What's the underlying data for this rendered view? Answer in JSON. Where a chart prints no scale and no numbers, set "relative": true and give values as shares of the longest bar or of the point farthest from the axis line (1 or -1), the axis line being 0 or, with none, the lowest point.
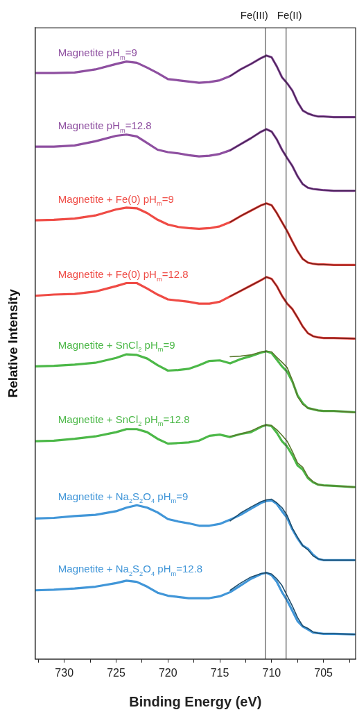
{
  "chart_data": {
    "type": "line",
    "xlabel": "Binding Energy (eV)",
    "ylabel": "Relative Intensity",
    "relative": true,
    "marker": "none",
    "xlim": [
      732.8,
      701.9
    ],
    "xticks": [
      {
        "value": 732.5,
        "label": null
      },
      730,
      {
        "value": 727.5,
        "label": null
      },
      725,
      {
        "value": 722.5,
        "label": null
      },
      720,
      {
        "value": 717.5,
        "label": null
      },
      715,
      {
        "value": 712.5,
        "label": null
      },
      710,
      {
        "value": 707.5,
        "label": null
      },
      705,
      {
        "value": 702.5,
        "label": null
      }
    ],
    "ref_lines": [
      {
        "axis": "x",
        "value": 710.6,
        "label": "Fe(III)",
        "color": "#333333"
      },
      {
        "axis": "x",
        "value": 708.6,
        "label": "Fe(II)",
        "color": "#333333"
      }
    ],
    "x": [
      732.8,
      731,
      729,
      727,
      725,
      724,
      723,
      722,
      721,
      720,
      719,
      718,
      717,
      716,
      715,
      714,
      713,
      712,
      711,
      710.5,
      710,
      709.5,
      709,
      708.5,
      708,
      707.5,
      707,
      706.5,
      706,
      705.5,
      705,
      704,
      702
    ],
    "series": [
      {
        "name": "Magnetite pH$_{m}$=9",
        "color": "#8e4fa0",
        "values": [
          0.971,
          0.971,
          0.972,
          0.977,
          0.986,
          0.99,
          0.988,
          0.98,
          0.971,
          0.961,
          0.959,
          0.957,
          0.955,
          0.956,
          0.959,
          0.966,
          0.977,
          0.986,
          0.996,
          1.0,
          0.997,
          0.982,
          0.964,
          0.954,
          0.942,
          0.923,
          0.909,
          0.904,
          0.901,
          0.899,
          0.899,
          0.898,
          0.898
        ]
      },
      {
        "name": "Magnetite pH$_{m}$=12.8",
        "color": "#8e4fa0",
        "values": [
          0.849,
          0.849,
          0.851,
          0.858,
          0.867,
          0.869,
          0.866,
          0.855,
          0.844,
          0.84,
          0.838,
          0.835,
          0.833,
          0.834,
          0.837,
          0.843,
          0.853,
          0.863,
          0.874,
          0.878,
          0.874,
          0.861,
          0.844,
          0.83,
          0.817,
          0.8,
          0.787,
          0.781,
          0.779,
          0.778,
          0.777,
          0.776,
          0.776
        ]
      },
      {
        "name": "Magnetite + Fe(0) pH$_{m}$=9",
        "color": "#ef4b45",
        "values": [
          0.727,
          0.728,
          0.73,
          0.735,
          0.745,
          0.748,
          0.747,
          0.739,
          0.728,
          0.72,
          0.716,
          0.714,
          0.713,
          0.714,
          0.717,
          0.724,
          0.734,
          0.743,
          0.752,
          0.755,
          0.752,
          0.739,
          0.724,
          0.709,
          0.692,
          0.676,
          0.663,
          0.657,
          0.655,
          0.654,
          0.654,
          0.653,
          0.653
        ]
      },
      {
        "name": "Magnetite + Fe(0) pH$_{m}$=12.8",
        "color": "#ef4b45",
        "values": [
          0.602,
          0.604,
          0.605,
          0.609,
          0.618,
          0.623,
          0.623,
          0.614,
          0.604,
          0.596,
          0.594,
          0.592,
          0.589,
          0.589,
          0.592,
          0.601,
          0.61,
          0.619,
          0.628,
          0.633,
          0.63,
          0.618,
          0.602,
          0.589,
          0.58,
          0.566,
          0.551,
          0.54,
          0.535,
          0.533,
          0.532,
          0.532,
          0.531
        ]
      },
      {
        "name": "Magnetite + SnCl$_{2}$ pH$_{m}$=9",
        "color": "#4cb848",
        "values": [
          0.485,
          0.486,
          0.488,
          0.491,
          0.499,
          0.505,
          0.504,
          0.498,
          0.487,
          0.478,
          0.479,
          0.481,
          0.487,
          0.494,
          0.495,
          0.49,
          0.497,
          0.502,
          0.508,
          0.51,
          0.507,
          0.496,
          0.485,
          0.476,
          0.46,
          0.437,
          0.424,
          0.416,
          0.414,
          0.412,
          0.411,
          0.411,
          0.409
        ]
      },
      {
        "name": "Magnetite + SnCl$_{2}$ pH$_{m}$=12.8",
        "color": "#4cb848",
        "values": [
          0.361,
          0.362,
          0.365,
          0.369,
          0.376,
          0.381,
          0.381,
          0.376,
          0.365,
          0.357,
          0.358,
          0.359,
          0.362,
          0.37,
          0.372,
          0.368,
          0.373,
          0.376,
          0.385,
          0.388,
          0.386,
          0.375,
          0.361,
          0.352,
          0.338,
          0.321,
          0.314,
          0.3,
          0.293,
          0.289,
          0.288,
          0.287,
          0.285
        ]
      },
      {
        "name": "Magnetite + Na$_{2}$S$_{2}$O$_{4}$ pH$_{m}$=9",
        "color": "#4196d8",
        "values": [
          0.233,
          0.234,
          0.237,
          0.239,
          0.245,
          0.251,
          0.255,
          0.251,
          0.243,
          0.232,
          0.228,
          0.225,
          0.221,
          0.221,
          0.224,
          0.231,
          0.239,
          0.249,
          0.259,
          0.262,
          0.263,
          0.257,
          0.245,
          0.234,
          0.215,
          0.2,
          0.188,
          0.183,
          0.173,
          0.166,
          0.164,
          0.164,
          0.164
        ]
      },
      {
        "name": "Magnetite + Na$_{2}$S$_{2}$O$_{4}$ pH$_{m}$=12.8",
        "color": "#4196d8",
        "values": [
          0.114,
          0.115,
          0.117,
          0.12,
          0.126,
          0.13,
          0.128,
          0.12,
          0.11,
          0.105,
          0.103,
          0.101,
          0.101,
          0.101,
          0.104,
          0.111,
          0.122,
          0.133,
          0.141,
          0.143,
          0.139,
          0.128,
          0.111,
          0.097,
          0.08,
          0.063,
          0.054,
          0.049,
          0.044,
          0.043,
          0.042,
          0.042,
          0.041
        ]
      },
      {
        "color": "#4a2458",
        "x": [
          714,
          713,
          712,
          711,
          710.5,
          710,
          709.5,
          709,
          708.5,
          708,
          707.5,
          707,
          706.5,
          706,
          705.5,
          705,
          704,
          702
        ],
        "values": [
          0.966,
          0.977,
          0.986,
          0.996,
          1.0,
          0.997,
          0.982,
          0.964,
          0.954,
          0.942,
          0.923,
          0.909,
          0.904,
          0.901,
          0.899,
          0.899,
          0.898,
          0.898
        ]
      },
      {
        "color": "#4a2458",
        "x": [
          714,
          713,
          712,
          711,
          710.5,
          710,
          709.5,
          709,
          708.5,
          708,
          707.5,
          707,
          706.5,
          706,
          705.5,
          705,
          704,
          702
        ],
        "values": [
          0.843,
          0.853,
          0.863,
          0.874,
          0.878,
          0.874,
          0.861,
          0.844,
          0.83,
          0.817,
          0.8,
          0.787,
          0.781,
          0.779,
          0.778,
          0.777,
          0.776,
          0.776
        ]
      },
      {
        "color": "#7a1f1a",
        "x": [
          714,
          713,
          712,
          711,
          710.5,
          710,
          709.5,
          709,
          708.5,
          708,
          707.5,
          707,
          706.5,
          706,
          705.5,
          705,
          704,
          702
        ],
        "values": [
          0.724,
          0.734,
          0.743,
          0.752,
          0.755,
          0.752,
          0.739,
          0.724,
          0.709,
          0.692,
          0.676,
          0.663,
          0.657,
          0.655,
          0.654,
          0.654,
          0.653,
          0.653
        ]
      },
      {
        "color": "#7a1f1a",
        "x": [
          714,
          713,
          712,
          711,
          710.5,
          710,
          709.5,
          709,
          708.5,
          708,
          707.5,
          707,
          706.5,
          706,
          705.5,
          705,
          704,
          702
        ],
        "values": [
          0.601,
          0.61,
          0.619,
          0.628,
          0.633,
          0.63,
          0.618,
          0.602,
          0.589,
          0.58,
          0.566,
          0.551,
          0.54,
          0.535,
          0.533,
          0.532,
          0.532,
          0.531
        ]
      },
      {
        "color": "#5a7a2e",
        "x": [
          714,
          713,
          712,
          711,
          710.5,
          710,
          709.5,
          709,
          708.5,
          708,
          707.5,
          707,
          706.5,
          706,
          705.5,
          705,
          704,
          702
        ],
        "values": [
          0.501,
          0.502,
          0.504,
          0.509,
          0.51,
          0.509,
          0.5,
          0.492,
          0.483,
          0.462,
          0.435,
          0.422,
          0.416,
          0.414,
          0.412,
          0.411,
          0.411,
          0.409
        ]
      },
      {
        "color": "#5a7a2e",
        "x": [
          714,
          713,
          712,
          711,
          710.5,
          710,
          709.5,
          709,
          708.5,
          708,
          707.5,
          707,
          706.5,
          706,
          705.5,
          705,
          704,
          702
        ],
        "values": [
          0.369,
          0.373,
          0.378,
          0.386,
          0.388,
          0.387,
          0.38,
          0.371,
          0.361,
          0.344,
          0.325,
          0.318,
          0.302,
          0.294,
          0.289,
          0.288,
          0.287,
          0.285
        ]
      },
      {
        "color": "#1f4e6e",
        "x": [
          714,
          713,
          712,
          711,
          710.5,
          710,
          709.5,
          709,
          708.5,
          708,
          707.5,
          707,
          706.5,
          706,
          705.5,
          705,
          704,
          702
        ],
        "values": [
          0.229,
          0.242,
          0.252,
          0.261,
          0.264,
          0.265,
          0.259,
          0.251,
          0.238,
          0.217,
          0.202,
          0.188,
          0.181,
          0.171,
          0.166,
          0.164,
          0.164,
          0.164
        ]
      },
      {
        "color": "#1f4e6e",
        "x": [
          714,
          713,
          712,
          711,
          710.5,
          710,
          709.5,
          709,
          708.5,
          708,
          707.5,
          707,
          706.5,
          706,
          705.5,
          705,
          704,
          702
        ],
        "values": [
          0.114,
          0.126,
          0.136,
          0.142,
          0.143,
          0.141,
          0.133,
          0.122,
          0.105,
          0.088,
          0.069,
          0.055,
          0.051,
          0.045,
          0.043,
          0.042,
          0.042,
          0.041
        ]
      }
    ]
  }
}
